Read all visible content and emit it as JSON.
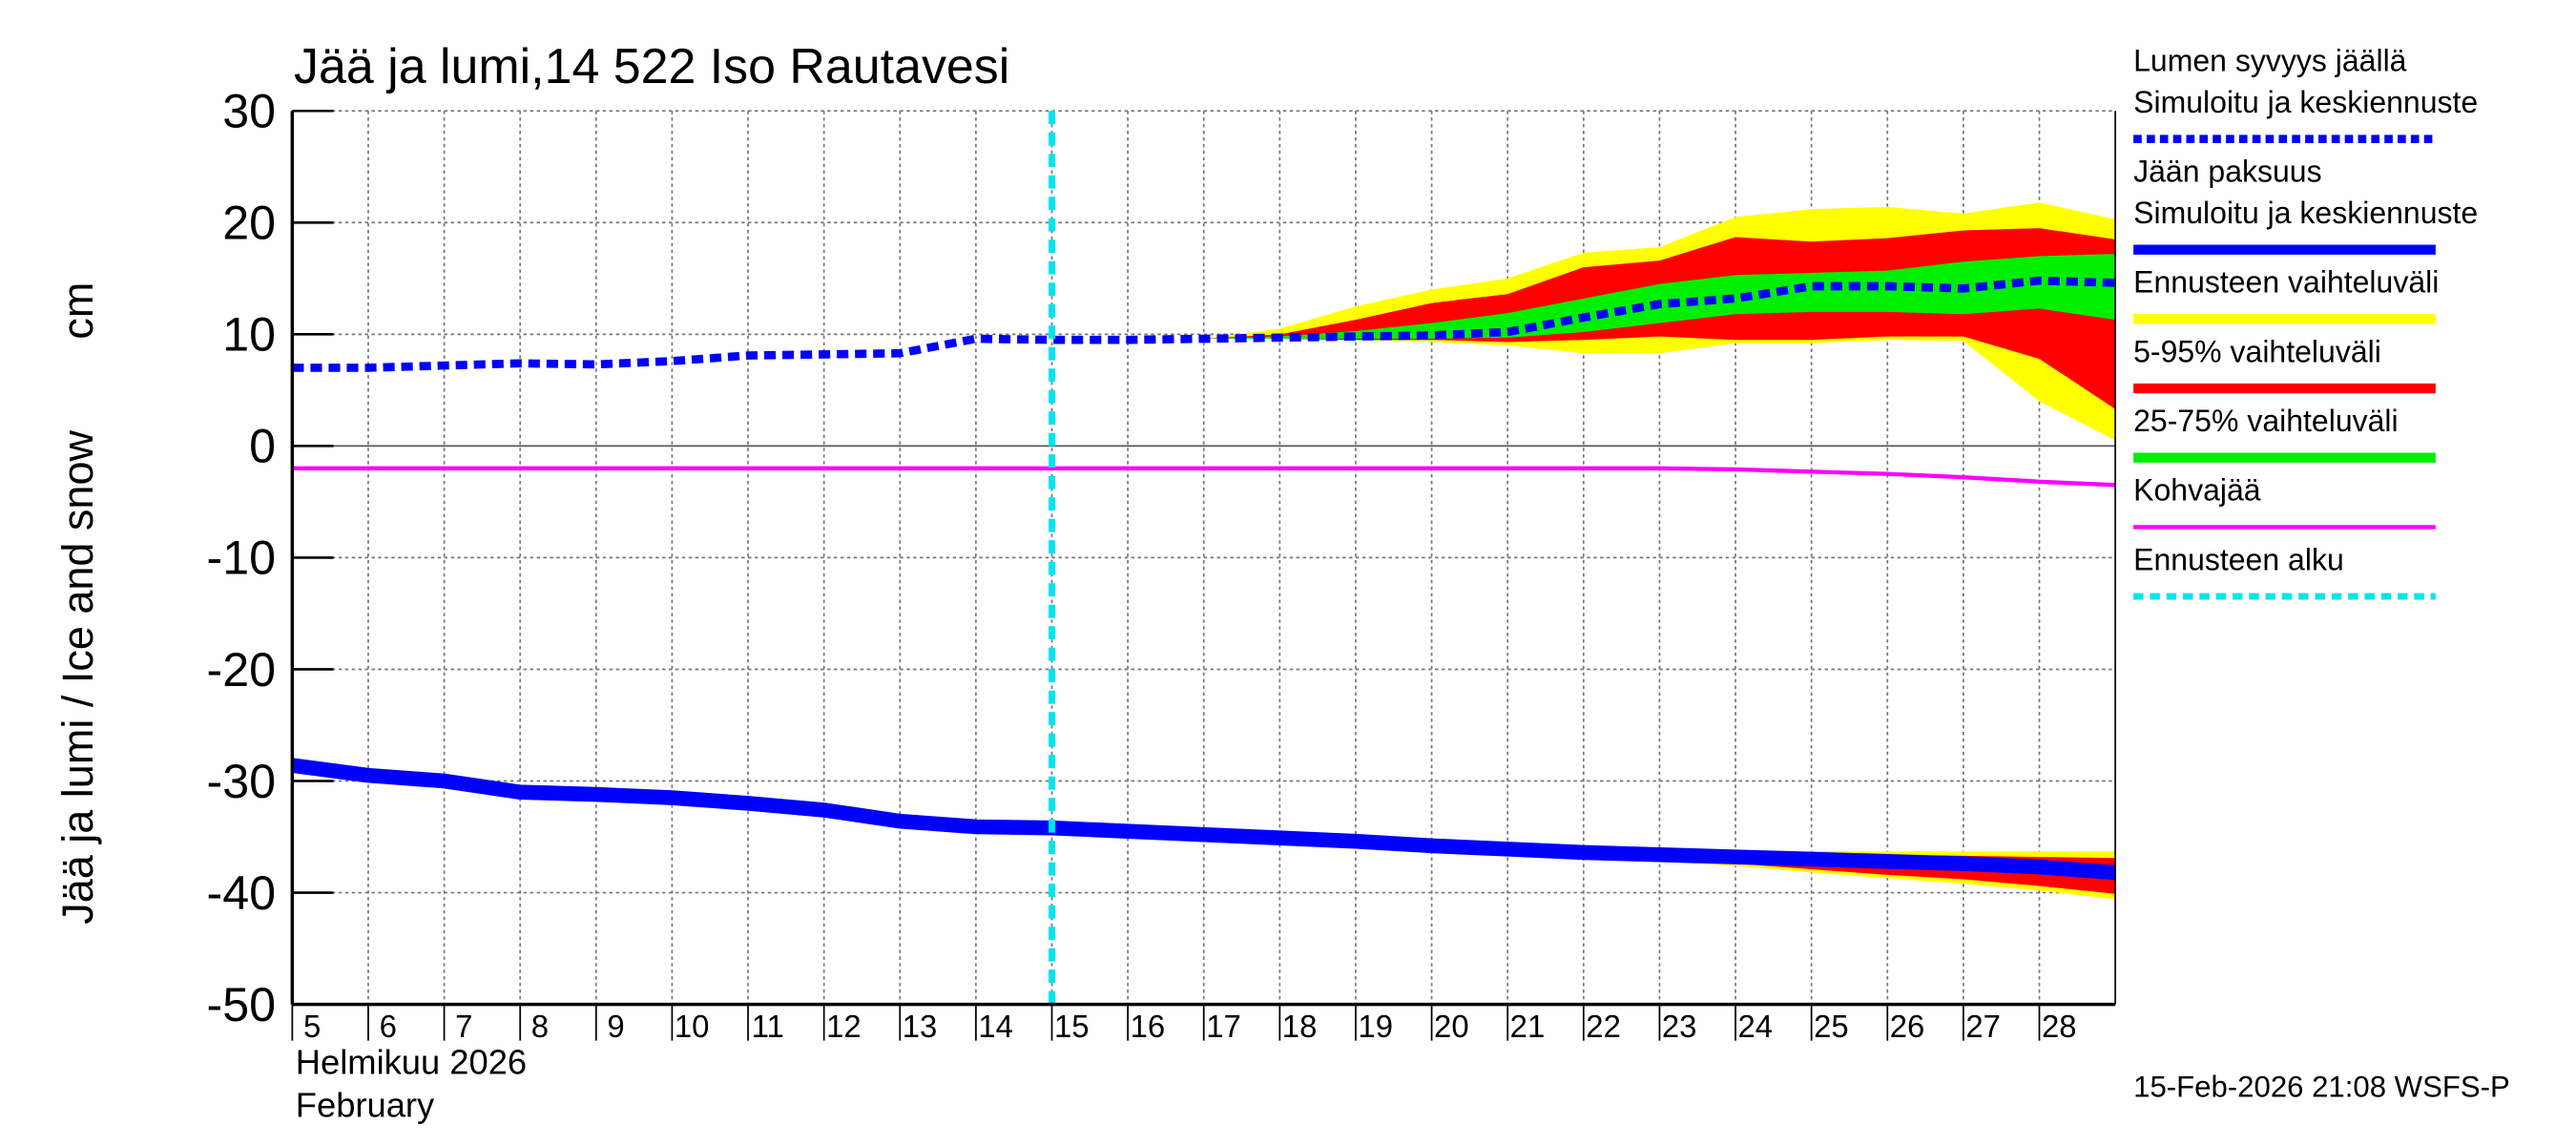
{
  "chart_data": {
    "type": "line",
    "title": "Jää ja lumi,14 522 Iso Rautavesi",
    "ylabel": "Jää ja lumi / Ice and snow",
    "yunit": "cm",
    "xlabel_fi": "Helmikuu  2026",
    "xlabel_en": "February",
    "footer": "15-Feb-2026 21:08 WSFS-P",
    "xlim": [
      5,
      29
    ],
    "xticks": [
      5,
      6,
      7,
      8,
      9,
      10,
      11,
      12,
      13,
      14,
      15,
      16,
      17,
      18,
      19,
      20,
      21,
      22,
      23,
      24,
      25,
      26,
      27,
      28
    ],
    "ylim": [
      -50,
      30
    ],
    "yticks": [
      -50,
      -40,
      -30,
      -20,
      -10,
      0,
      10,
      20,
      30
    ],
    "grid": true,
    "series": [
      {
        "name": [
          "Lumen syvyys jäällä",
          "Simuloitu ja keskiennuste"
        ],
        "color": "#0000ff",
        "style": "dashed",
        "x": [
          5,
          6,
          7,
          8,
          9,
          10,
          11,
          12,
          13,
          14,
          15,
          16,
          17,
          18,
          19,
          20,
          21,
          22,
          23,
          24,
          25,
          26,
          27,
          28,
          29
        ],
        "values": [
          7,
          7,
          7.2,
          7.4,
          7.3,
          7.6,
          8.1,
          8.2,
          8.3,
          9.6,
          9.5,
          9.5,
          9.6,
          9.7,
          9.8,
          9.9,
          10.2,
          11.5,
          12.7,
          13.2,
          14.3,
          14.3,
          14.1,
          14.8,
          14.6
        ]
      },
      {
        "name": [
          "Jään paksuus",
          "Simuloitu ja keskiennuste"
        ],
        "color": "#0000ff",
        "style": "solid",
        "x": [
          5,
          6,
          7,
          8,
          9,
          10,
          11,
          12,
          13,
          14,
          15,
          16,
          17,
          18,
          19,
          20,
          21,
          22,
          23,
          24,
          25,
          26,
          27,
          28,
          29
        ],
        "values": [
          -28.6,
          -29.5,
          -30,
          -31,
          -31.2,
          -31.5,
          -32,
          -32.6,
          -33.6,
          -34.1,
          -34.2,
          -34.5,
          -34.8,
          -35.1,
          -35.4,
          -35.8,
          -36.1,
          -36.4,
          -36.6,
          -36.8,
          -37,
          -37.2,
          -37.4,
          -37.7,
          -38.2
        ]
      },
      {
        "name": [
          "Kohvajää"
        ],
        "color": "#ff00ff",
        "style": "thin",
        "x": [
          5,
          6,
          7,
          8,
          9,
          10,
          11,
          12,
          13,
          14,
          15,
          16,
          17,
          18,
          19,
          20,
          21,
          22,
          23,
          24,
          25,
          26,
          27,
          28,
          29
        ],
        "values": [
          -2,
          -2,
          -2,
          -2,
          -2,
          -2,
          -2,
          -2,
          -2,
          -2,
          -2,
          -2,
          -2,
          -2,
          -2,
          -2,
          -2,
          -2,
          -2,
          -2.1,
          -2.3,
          -2.5,
          -2.8,
          -3.2,
          -3.5
        ]
      }
    ],
    "bands": [
      {
        "name": "Ennusteen vaihteluväli",
        "color": "#ffff00",
        "snow": {
          "x": [
            17,
            18,
            19,
            20,
            21,
            22,
            23,
            24,
            25,
            26,
            27,
            28,
            29
          ],
          "low": [
            9.6,
            9.6,
            9.5,
            9.3,
            9,
            8.3,
            8.3,
            9.2,
            9.2,
            9.5,
            9.4,
            4,
            0.5
          ],
          "high": [
            9.6,
            10.5,
            12.5,
            14,
            15,
            17.3,
            17.8,
            20.5,
            21.2,
            21.4,
            20.8,
            21.8,
            20.3
          ]
        },
        "ice": {
          "x": [
            20,
            21,
            22,
            23,
            24,
            25,
            26,
            27,
            28,
            29
          ],
          "low": [
            -35.8,
            -36.3,
            -36.8,
            -37.2,
            -37.6,
            -38.2,
            -38.7,
            -39.2,
            -39.8,
            -40.6
          ],
          "high": [
            -35.8,
            -36,
            -36.2,
            -36.3,
            -36.3,
            -36.3,
            -36.3,
            -36.3,
            -36.3,
            -36.3
          ]
        }
      },
      {
        "name": "5-95% vaihteluväli",
        "color": "#ff0000",
        "snow": {
          "x": [
            17,
            18,
            19,
            20,
            21,
            22,
            23,
            24,
            25,
            26,
            27,
            28,
            29
          ],
          "low": [
            9.6,
            9.6,
            9.5,
            9.5,
            9.3,
            9.5,
            9.8,
            9.5,
            9.5,
            9.8,
            9.8,
            7.8,
            3.3
          ],
          "high": [
            9.6,
            10,
            11.3,
            12.8,
            13.6,
            16,
            16.6,
            18.7,
            18.3,
            18.6,
            19.3,
            19.5,
            18.5
          ]
        },
        "ice": {
          "x": [
            20,
            21,
            22,
            23,
            24,
            25,
            26,
            27,
            28,
            29
          ],
          "low": [
            -35.8,
            -36.2,
            -36.7,
            -37,
            -37.4,
            -37.9,
            -38.4,
            -38.8,
            -39.4,
            -40.1
          ],
          "high": [
            -35.8,
            -36,
            -36.3,
            -36.4,
            -36.5,
            -36.6,
            -36.6,
            -36.7,
            -36.8,
            -36.9
          ]
        }
      },
      {
        "name": "25-75% vaihteluväli",
        "color": "#00ee00",
        "snow": {
          "x": [
            17,
            18,
            19,
            20,
            21,
            22,
            23,
            24,
            25,
            26,
            27,
            28,
            29
          ],
          "low": [
            9.6,
            9.6,
            9.6,
            9.6,
            9.7,
            10.2,
            11,
            11.8,
            12,
            12,
            11.8,
            12.3,
            11.3
          ],
          "high": [
            9.6,
            9.8,
            10.3,
            11,
            11.9,
            13.2,
            14.5,
            15.3,
            15.5,
            15.7,
            16.5,
            17,
            17.2
          ]
        }
      }
    ],
    "forecast_start": {
      "name": "Ennusteen alku",
      "x": 15,
      "color": "#00e5ee"
    }
  }
}
